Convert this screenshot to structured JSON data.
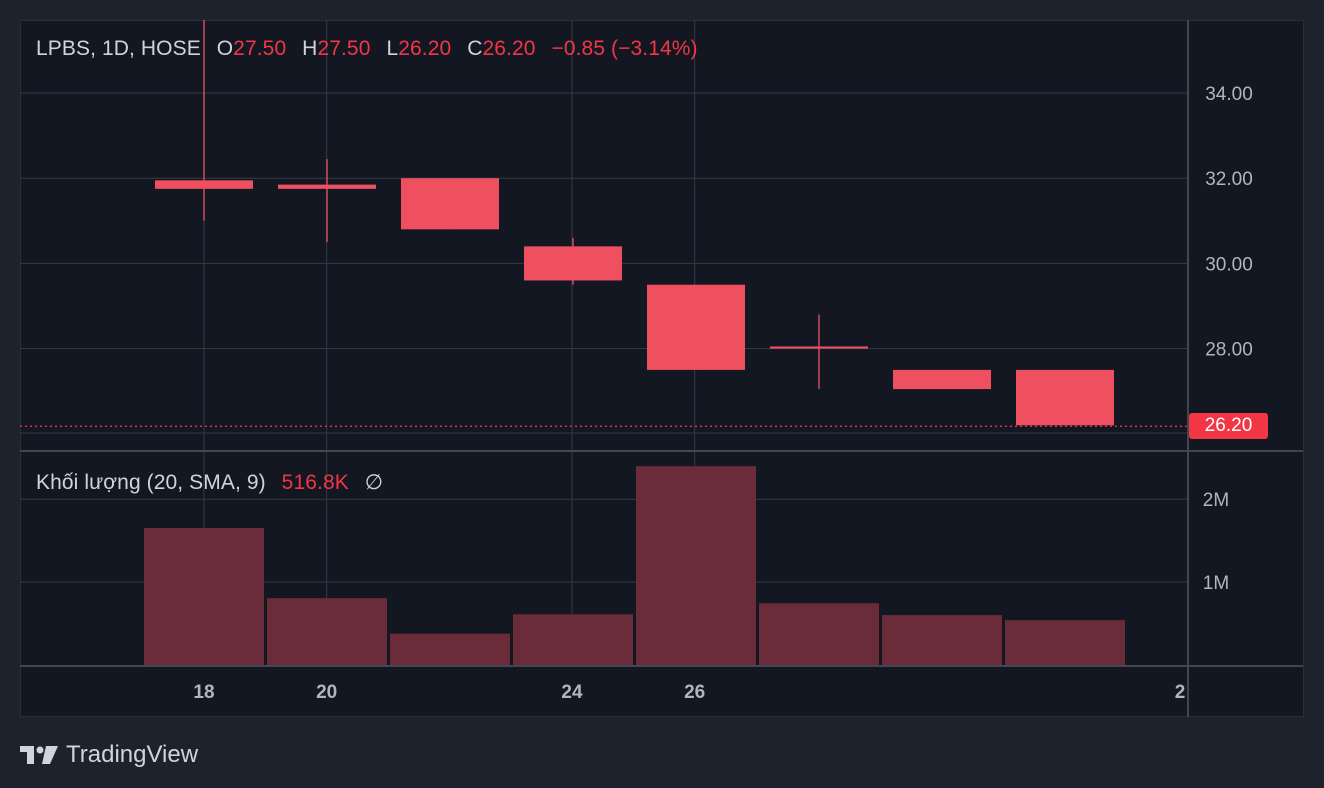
{
  "header": {
    "symbol": "LPBS, 1D, HOSE",
    "open_label": "O",
    "open": "27.50",
    "high_label": "H",
    "high": "27.50",
    "low_label": "L",
    "low": "26.20",
    "close_label": "C",
    "close": "26.20",
    "change": "−0.85 (−3.14%)"
  },
  "volume_legend": {
    "label": "Khối lượng (20, SMA, 9)",
    "value": "516.8K",
    "symbol": "∅"
  },
  "last_price": "26.20",
  "brand": {
    "name": "TradingView",
    "logo_icon": "tradingview-logo-icon"
  },
  "colors": {
    "background": "#131722",
    "down_candle": "#ef5060",
    "volume_bar": "#6b2c39",
    "grid": "#363a45",
    "text": "#d1d4dc"
  },
  "chart_data": {
    "type": "candlestick",
    "price_axis": {
      "ticks": [
        "34.00",
        "32.00",
        "30.00",
        "28.00"
      ],
      "range": [
        25.6,
        35.5
      ]
    },
    "volume_axis": {
      "ticks": [
        "2M",
        "1M"
      ],
      "range": [
        0,
        2.4
      ]
    },
    "x_ticks": [
      {
        "label": "18",
        "day": 18
      },
      {
        "label": "20",
        "day": 20
      },
      {
        "label": "24",
        "day": 24
      },
      {
        "label": "26",
        "day": 26
      },
      {
        "label": "2",
        "day": 28
      }
    ],
    "candles": [
      {
        "day": 18,
        "open": 31.95,
        "high": 36.0,
        "low": 31.0,
        "close": 31.75,
        "volume": 1.62
      },
      {
        "day": 19,
        "open": 31.85,
        "high": 32.45,
        "low": 30.5,
        "close": 31.75,
        "volume": 0.79
      },
      {
        "day": 20,
        "open": 32.0,
        "high": 32.0,
        "low": 30.8,
        "close": 30.8,
        "volume": 0.37
      },
      {
        "day": 21,
        "open": 30.4,
        "high": 30.6,
        "low": 29.5,
        "close": 29.6,
        "volume": 0.6
      },
      {
        "day": 24,
        "open": 29.5,
        "high": 29.5,
        "low": 27.5,
        "close": 27.5,
        "volume": 2.35
      },
      {
        "day": 25,
        "open": 28.05,
        "high": 28.8,
        "low": 27.05,
        "close": 28.0,
        "volume": 0.73
      },
      {
        "day": 26,
        "open": 27.5,
        "high": 27.5,
        "low": 27.05,
        "close": 27.05,
        "volume": 0.59
      },
      {
        "day": 27,
        "open": 27.5,
        "high": 27.5,
        "low": 26.2,
        "close": 26.2,
        "volume": 0.53
      }
    ]
  }
}
